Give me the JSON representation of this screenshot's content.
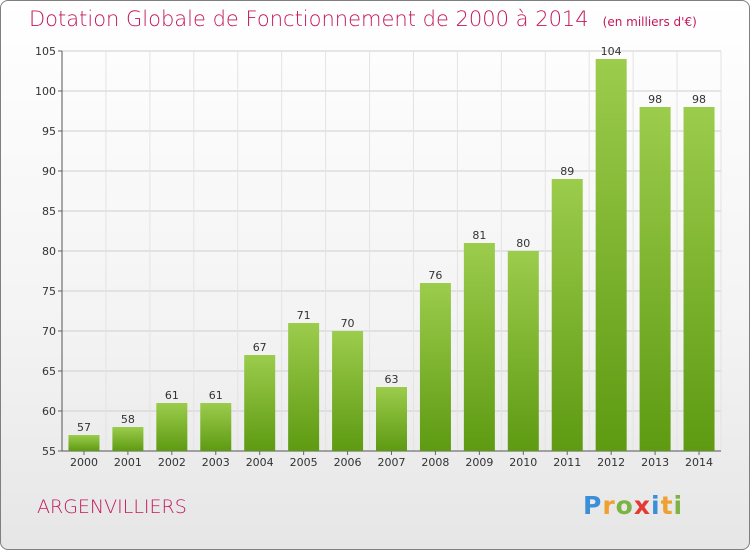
{
  "chart_data": {
    "type": "bar",
    "title": "Dotation Globale de Fonctionnement de 2000 à 2014",
    "unit": "(en milliers d'€)",
    "categories": [
      "2000",
      "2001",
      "2002",
      "2003",
      "2004",
      "2005",
      "2006",
      "2007",
      "2008",
      "2009",
      "2010",
      "2011",
      "2012",
      "2013",
      "2014"
    ],
    "values": [
      57,
      58,
      61,
      61,
      67,
      71,
      70,
      63,
      76,
      81,
      80,
      89,
      104,
      98,
      98
    ],
    "ylim": [
      55,
      105
    ],
    "yticks": [
      55,
      60,
      65,
      70,
      75,
      80,
      85,
      90,
      95,
      100,
      105
    ],
    "grid": true,
    "xlabel": "",
    "ylabel": ""
  },
  "commune": "ARGENVILLIERS",
  "brand": {
    "name": "Proxiti"
  },
  "colors": {
    "title": "#c2185b",
    "bar_top": "#9ccc4c",
    "bar_bottom": "#5e9a12",
    "grid": "#cfcfcf"
  }
}
